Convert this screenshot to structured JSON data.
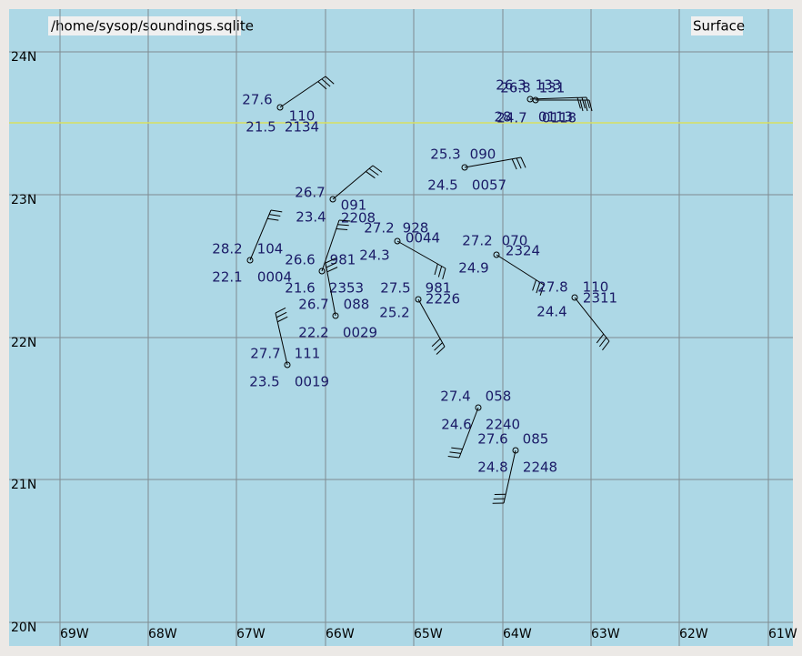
{
  "header": {
    "path": "/home/sysop/soundings.sqlite",
    "level": "Surface"
  },
  "lat_labels": [
    "24N",
    "23N",
    "22N",
    "21N",
    "20N"
  ],
  "lon_labels": [
    "69W",
    "68W",
    "67W",
    "66W",
    "65W",
    "64W",
    "63W",
    "62W",
    "61W"
  ],
  "stations": [
    {
      "temp": "27.6",
      "pressure": "110",
      "dewpoint": "21.5",
      "time": "2134"
    },
    {
      "temp": "26.3",
      "pressure": "133",
      "dewpoint": "28",
      "time": "0113"
    },
    {
      "temp": "26.8",
      "pressure": "131",
      "dewpoint": "24.7",
      "time": "0118"
    },
    {
      "temp": "25.3",
      "pressure": "090",
      "dewpoint": "24.5",
      "time": "0057"
    },
    {
      "temp": "26.7",
      "pressure": "091",
      "dewpoint": "23.4",
      "time": "2208"
    },
    {
      "temp": "27.2",
      "pressure": "928",
      "dewpoint": "24.3",
      "time": "0044"
    },
    {
      "temp": "27.2",
      "pressure": "070",
      "dewpoint": "24.9",
      "time": "2324"
    },
    {
      "temp": "28.2",
      "pressure": "104",
      "dewpoint": "22.1",
      "time": "0004"
    },
    {
      "temp": "26.6",
      "pressure": "981",
      "dewpoint": "21.6",
      "time": "2353"
    },
    {
      "temp": "26.7",
      "pressure": "088",
      "dewpoint": "22.2",
      "time": "0029"
    },
    {
      "temp": "27.5",
      "pressure": "981",
      "dewpoint": "25.2",
      "time": "2226"
    },
    {
      "temp": "27.8",
      "pressure": "110",
      "dewpoint": "24.4",
      "time": "2311"
    },
    {
      "temp": "27.7",
      "pressure": "111",
      "dewpoint": "23.5",
      "time": "0019"
    },
    {
      "temp": "27.4",
      "pressure": "058",
      "dewpoint": "24.6",
      "time": "2240"
    },
    {
      "temp": "27.6",
      "pressure": "085",
      "dewpoint": "24.8",
      "time": "2248"
    }
  ]
}
